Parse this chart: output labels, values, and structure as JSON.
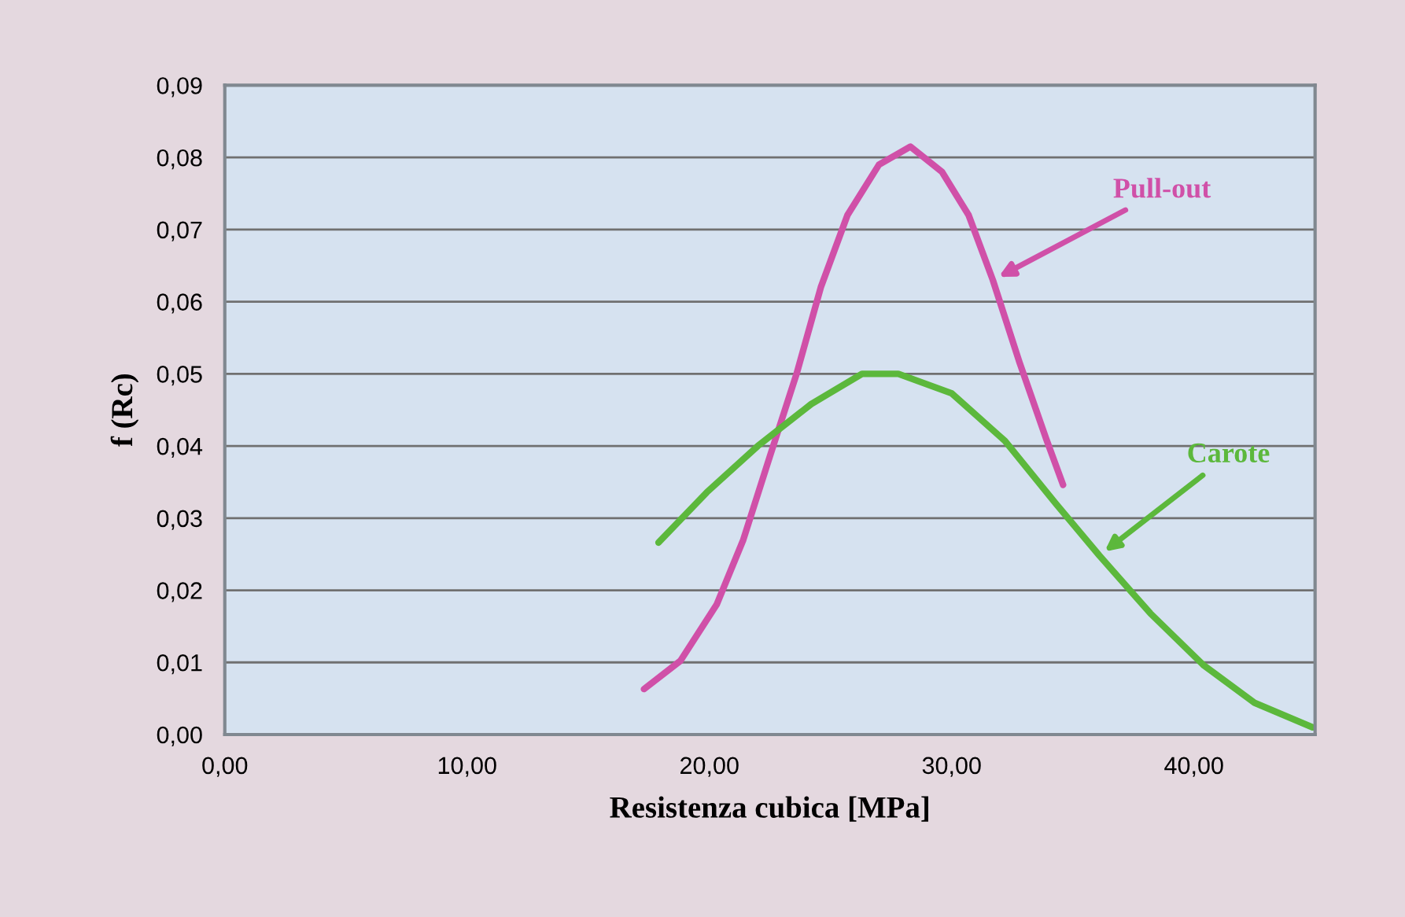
{
  "chart_data": {
    "type": "line",
    "xlabel": "Resistenza cubica [MPa]",
    "ylabel": "f (Rc)",
    "xlim": [
      0,
      45
    ],
    "xticks": [
      {
        "value": 0,
        "label": "0,00"
      },
      {
        "value": 10,
        "label": "10,00"
      },
      {
        "value": 20,
        "label": "20,00"
      },
      {
        "value": 30,
        "label": "30,00"
      },
      {
        "value": 40,
        "label": "40,00"
      }
    ],
    "ylim": [
      0,
      0.09
    ],
    "yticks": [
      {
        "value": 0,
        "label": "0,00"
      },
      {
        "value": 0.01,
        "label": "0,01"
      },
      {
        "value": 0.02,
        "label": "0,02"
      },
      {
        "value": 0.03,
        "label": "0,03"
      },
      {
        "value": 0.04,
        "label": "0,04"
      },
      {
        "value": 0.05,
        "label": "0,05"
      },
      {
        "value": 0.06,
        "label": "0,06"
      },
      {
        "value": 0.07,
        "label": "0,07"
      },
      {
        "value": 0.08,
        "label": "0,08"
      },
      {
        "value": 0.09,
        "label": "0,09"
      }
    ],
    "grid": "y",
    "legend": false,
    "marker": "none",
    "line_style": "solid",
    "series": [
      {
        "name": "Pull-out",
        "color": "#d050a8",
        "x": [
          17.3,
          18.8,
          20.3,
          21.4,
          22.5,
          23.6,
          24.6,
          25.7,
          27.0,
          28.3,
          29.6,
          30.7,
          31.7,
          32.8,
          33.9,
          34.6
        ],
        "values": [
          0.0063,
          0.0102,
          0.018,
          0.027,
          0.0386,
          0.05,
          0.062,
          0.072,
          0.079,
          0.0815,
          0.078,
          0.072,
          0.063,
          0.0516,
          0.041,
          0.0346
        ]
      },
      {
        "name": "Carote",
        "color": "#5cb83c",
        "x": [
          17.9,
          19.9,
          22.0,
          24.2,
          26.3,
          27.8,
          30.0,
          32.2,
          34.3,
          36.1,
          38.2,
          40.4,
          42.5,
          44.9
        ],
        "values": [
          0.0266,
          0.0336,
          0.04,
          0.0458,
          0.05,
          0.05,
          0.0473,
          0.0407,
          0.032,
          0.0248,
          0.0168,
          0.0096,
          0.0044,
          0.001
        ]
      }
    ]
  }
}
